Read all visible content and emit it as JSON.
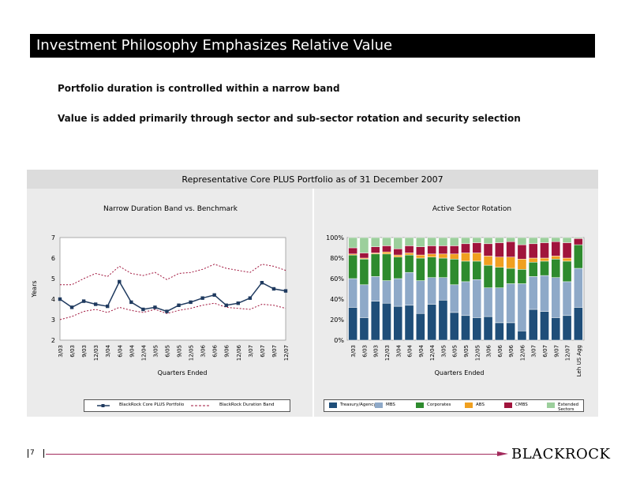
{
  "slide": {
    "title": "Investment Philosophy Emphasizes Relative Value",
    "bullets": [
      "Portfolio duration is controlled within a narrow band",
      "Value is added primarily through sector and sub-sector rotation and security selection"
    ],
    "panel_title": "Representative Core PLUS Portfolio as of 31 December 2007",
    "page_number": "7",
    "logo_text": "BLACKROCK"
  },
  "colors": {
    "portfolio_line": "#1f3a5f",
    "band_line": "#a0143c",
    "treasury": "#1f4e79",
    "mbs": "#8ea9c8",
    "corporates": "#2e8b2e",
    "abs": "#f0a020",
    "cmbs": "#a0143c",
    "extended": "#9ccf9c"
  },
  "chart_data": [
    {
      "type": "line",
      "title": "Narrow Duration Band vs. Benchmark",
      "xlabel": "Quarters Ended",
      "ylabel": "Years",
      "ylim": [
        2,
        7
      ],
      "yticks": [
        "2",
        "3",
        "4",
        "5",
        "6",
        "7"
      ],
      "categories": [
        "3/03",
        "6/03",
        "9/03",
        "12/03",
        "3/04",
        "6/04",
        "9/04",
        "12/04",
        "3/05",
        "6/05",
        "9/05",
        "12/05",
        "3/06",
        "6/06",
        "9/06",
        "12/06",
        "3/07",
        "6/07",
        "9/07",
        "12/07"
      ],
      "series": [
        {
          "name": "BlackRock Core PLUS Portfolio",
          "values": [
            4.0,
            3.6,
            3.9,
            3.75,
            3.65,
            4.85,
            3.85,
            3.5,
            3.6,
            3.4,
            3.7,
            3.85,
            4.05,
            4.2,
            3.7,
            3.8,
            4.05,
            4.8,
            4.5,
            4.4
          ]
        },
        {
          "name": "BlackRock Duration Band",
          "upper": [
            4.7,
            4.7,
            5.0,
            5.25,
            5.1,
            5.6,
            5.25,
            5.15,
            5.3,
            4.95,
            5.25,
            5.3,
            5.45,
            5.7,
            5.5,
            5.4,
            5.3,
            5.7,
            5.6,
            5.4
          ],
          "lower": [
            3.0,
            3.15,
            3.4,
            3.5,
            3.35,
            3.6,
            3.45,
            3.35,
            3.5,
            3.3,
            3.45,
            3.55,
            3.7,
            3.8,
            3.6,
            3.55,
            3.5,
            3.75,
            3.7,
            3.55
          ]
        }
      ],
      "legend": "bottom"
    },
    {
      "type": "bar",
      "stacked": true,
      "title": "Active Sector Rotation",
      "xlabel": "Quarters Ended",
      "ylim": [
        0,
        100
      ],
      "yticks": [
        "0%",
        "20%",
        "40%",
        "60%",
        "80%",
        "100%"
      ],
      "categories": [
        "3/03",
        "6/03",
        "9/03",
        "12/03",
        "3/04",
        "6/04",
        "9/04",
        "12/04",
        "3/05",
        "6/05",
        "9/05",
        "12/05",
        "3/06",
        "6/06",
        "9/06",
        "12/06",
        "3/07",
        "6/07",
        "9/07",
        "12/07",
        "Leh US Agg"
      ],
      "series": [
        {
          "name": "Treasury/Agency",
          "values": [
            32,
            22,
            38,
            36,
            33,
            34,
            26,
            35,
            39,
            27,
            24,
            22,
            23,
            17,
            17,
            9,
            30,
            28,
            22,
            24,
            32
          ]
        },
        {
          "name": "MBS",
          "values": [
            28,
            32,
            24,
            22,
            27,
            32,
            32,
            26,
            22,
            27,
            33,
            37,
            28,
            34,
            38,
            46,
            32,
            35,
            39,
            33,
            38
          ]
        },
        {
          "name": "Corporates",
          "values": [
            23,
            25,
            22,
            26,
            21,
            17,
            22,
            20,
            19,
            25,
            20,
            18,
            22,
            20,
            15,
            14,
            14,
            14,
            18,
            20,
            23
          ]
        },
        {
          "name": "ABS",
          "values": [
            1,
            1,
            1,
            2,
            2,
            2,
            3,
            3,
            4,
            5,
            8,
            8,
            9,
            10,
            11,
            10,
            4,
            3,
            3,
            3,
            0
          ]
        },
        {
          "name": "CMBS",
          "values": [
            6,
            5,
            6,
            6,
            6,
            7,
            8,
            8,
            8,
            8,
            9,
            10,
            12,
            14,
            15,
            14,
            14,
            15,
            14,
            15,
            6
          ]
        },
        {
          "name": "Extended Sectors",
          "values": [
            10,
            15,
            9,
            8,
            11,
            8,
            9,
            8,
            8,
            8,
            6,
            5,
            6,
            5,
            4,
            7,
            6,
            5,
            4,
            5,
            1
          ]
        }
      ],
      "legend": "bottom"
    }
  ]
}
